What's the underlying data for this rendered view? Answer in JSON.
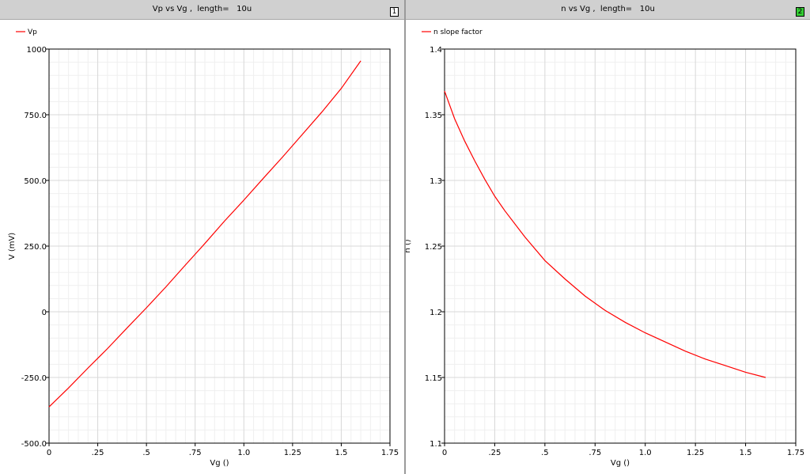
{
  "panels": [
    {
      "number": "1",
      "badge_color": "#ffffff",
      "title": "Vp vs Vg ,  length=   10u"
    },
    {
      "number": "2",
      "badge_color": "#33cc33",
      "title": "n vs Vg ,  length=   10u"
    }
  ],
  "chart_data": [
    {
      "type": "line",
      "title": "Vp vs Vg ,  length=   10u",
      "xlabel": "Vg ()",
      "ylabel": "V (mV)",
      "xlim": [
        0,
        1.75
      ],
      "ylim": [
        -500,
        1000
      ],
      "x_ticks": [
        0,
        0.25,
        0.5,
        0.75,
        1.0,
        1.25,
        1.5,
        1.75
      ],
      "x_tick_labels": [
        "0",
        ".25",
        ".5",
        ".75",
        "1.0",
        "1.25",
        "1.5",
        "1.75"
      ],
      "y_ticks": [
        -500,
        -250,
        0,
        250,
        500,
        750,
        1000
      ],
      "y_tick_labels": [
        "-500.0",
        "-250.0",
        "0",
        "250.0",
        "500.0",
        "750.0",
        "1000"
      ],
      "grid": true,
      "legend_position": "top-left",
      "line_color": "#ff0000",
      "series": [
        {
          "name": "Vp",
          "x": [
            0,
            0.1,
            0.2,
            0.3,
            0.4,
            0.5,
            0.6,
            0.7,
            0.8,
            0.9,
            1.0,
            1.1,
            1.2,
            1.3,
            1.4,
            1.5,
            1.6
          ],
          "values": [
            -362,
            -290,
            -214,
            -140,
            -62,
            15,
            95,
            178,
            260,
            345,
            425,
            508,
            590,
            675,
            760,
            850,
            955
          ]
        }
      ]
    },
    {
      "type": "line",
      "title": "n vs Vg ,  length=   10u",
      "xlabel": "Vg ()",
      "ylabel": "n ()",
      "xlim": [
        0,
        1.75
      ],
      "ylim": [
        1.1,
        1.4
      ],
      "x_ticks": [
        0,
        0.25,
        0.5,
        0.75,
        1.0,
        1.25,
        1.5,
        1.75
      ],
      "x_tick_labels": [
        "0",
        ".25",
        ".5",
        ".75",
        "1.0",
        "1.25",
        "1.5",
        "1.75"
      ],
      "y_ticks": [
        1.1,
        1.15,
        1.2,
        1.25,
        1.3,
        1.35,
        1.4
      ],
      "y_tick_labels": [
        "1.1",
        "1.15",
        "1.2",
        "1.25",
        "1.3",
        "1.35",
        "1.4"
      ],
      "grid": true,
      "legend_position": "top-left",
      "line_color": "#ff0000",
      "series": [
        {
          "name": "n slope factor",
          "x": [
            0,
            0.05,
            0.1,
            0.15,
            0.2,
            0.25,
            0.3,
            0.4,
            0.5,
            0.6,
            0.7,
            0.8,
            0.9,
            1.0,
            1.1,
            1.2,
            1.3,
            1.4,
            1.5,
            1.6
          ],
          "values": [
            1.368,
            1.347,
            1.33,
            1.315,
            1.301,
            1.288,
            1.277,
            1.257,
            1.239,
            1.225,
            1.212,
            1.201,
            1.192,
            1.184,
            1.177,
            1.17,
            1.164,
            1.159,
            1.154,
            1.15
          ]
        }
      ]
    }
  ]
}
